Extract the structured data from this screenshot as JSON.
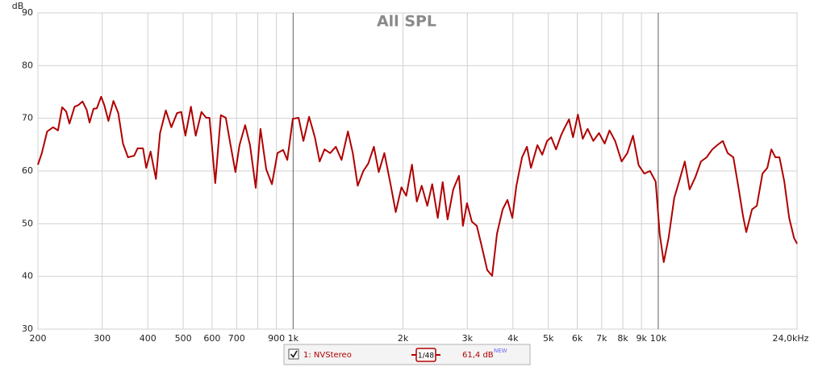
{
  "chart_data": {
    "type": "line",
    "title": "All SPL",
    "ylabel": "dB",
    "xscale": "log",
    "grid": true,
    "xlim": [
      200,
      24000
    ],
    "ylim": [
      30,
      90
    ],
    "yticks": [
      30,
      40,
      50,
      60,
      70,
      80,
      90
    ],
    "xticks": [
      200,
      300,
      400,
      500,
      600,
      700,
      {
        "value": 900,
        "label": "900"
      },
      {
        "value": 1000,
        "label": "1k"
      },
      {
        "value": 2000,
        "label": "2k"
      },
      {
        "value": 3000,
        "label": "3k"
      },
      {
        "value": 4000,
        "label": "4k"
      },
      {
        "value": 5000,
        "label": "5k"
      },
      {
        "value": 6000,
        "label": "6k"
      },
      {
        "value": 7000,
        "label": "7k"
      },
      {
        "value": 8000,
        "label": "8k"
      },
      {
        "value": 9000,
        "label": "9k"
      },
      {
        "value": 10000,
        "label": "10k"
      },
      {
        "value": 24000,
        "label": "24,0kHz"
      }
    ],
    "xminorticks": [
      800
    ],
    "x": [
      200,
      205,
      212,
      220,
      227,
      233,
      239,
      244,
      252,
      258,
      265,
      272,
      277,
      284,
      290,
      298,
      304,
      312,
      322,
      332,
      342,
      353,
      367,
      375,
      388,
      396,
      407,
      421,
      432,
      448,
      464,
      481,
      494,
      507,
      525,
      541,
      561,
      578,
      590,
      612,
      634,
      654,
      674,
      695,
      713,
      739,
      762,
      790,
      814,
      844,
      875,
      906,
      939,
      964,
      998,
      1035,
      1067,
      1106,
      1147,
      1182,
      1219,
      1263,
      1309,
      1357,
      1413,
      1457,
      1503,
      1557,
      1606,
      1664,
      1716,
      1778,
      1852,
      1910,
      1980,
      2041,
      2116,
      2182,
      2250,
      2331,
      2404,
      2490,
      2568,
      2649,
      2745,
      2845,
      2918,
      2994,
      3087,
      3184,
      3283,
      3401,
      3508,
      3617,
      3748,
      3864,
      3985,
      4088,
      4237,
      4369,
      4481,
      4667,
      4812,
      4962,
      5092,
      5250,
      5413,
      5524,
      5696,
      5843,
      6025,
      6212,
      6405,
      6640,
      6882,
      7133,
      7355,
      7620,
      7939,
      8229,
      8528,
      8838,
      9160,
      9493,
      9838,
      10092,
      10353,
      10675,
      11063,
      11407,
      11822,
      12190,
      12633,
      13092,
      13569,
      14062,
      14500,
      15025,
      15493,
      16059,
      16558,
      17075,
      17426,
      18062,
      18621,
      19298,
      19899,
      20410,
      20939,
      21479,
      22146,
      22834,
      23546,
      24000
    ],
    "series": [
      {
        "name": "1: NVStereo",
        "color": "#b00000",
        "values": [
          61.2,
          63.4,
          67.5,
          68.3,
          67.7,
          72.1,
          71.3,
          69.0,
          72.2,
          72.5,
          73.2,
          71.6,
          69.2,
          71.8,
          71.9,
          74.1,
          72.5,
          69.5,
          73.3,
          71.0,
          65.2,
          62.6,
          62.9,
          64.3,
          64.3,
          60.6,
          63.7,
          58.5,
          67.2,
          71.5,
          68.3,
          71.0,
          71.2,
          66.7,
          72.2,
          66.7,
          71.2,
          70.1,
          70.1,
          57.7,
          70.6,
          70.1,
          64.9,
          59.8,
          64.9,
          68.7,
          64.9,
          56.8,
          68.0,
          60.3,
          57.5,
          63.4,
          64.0,
          62.1,
          69.9,
          70.1,
          65.7,
          70.3,
          66.4,
          61.8,
          64.1,
          63.4,
          64.6,
          62.1,
          67.5,
          63.4,
          57.2,
          60.0,
          61.4,
          64.6,
          59.8,
          63.4,
          57.2,
          52.2,
          56.9,
          55.3,
          61.2,
          54.2,
          57.2,
          53.4,
          57.5,
          51.1,
          57.9,
          50.8,
          56.5,
          59.1,
          49.6,
          53.9,
          50.4,
          49.6,
          45.8,
          41.2,
          40.1,
          48.1,
          52.7,
          54.5,
          51.1,
          57.2,
          62.6,
          64.6,
          60.6,
          64.9,
          63.1,
          65.7,
          66.4,
          64.1,
          66.7,
          68.0,
          69.8,
          66.4,
          70.7,
          66.1,
          68.0,
          65.7,
          67.2,
          65.2,
          67.7,
          65.7,
          61.8,
          63.4,
          66.7,
          61.1,
          59.5,
          60.0,
          58.0,
          48.1,
          42.7,
          47.3,
          54.9,
          58.0,
          61.8,
          56.5,
          58.8,
          61.8,
          62.6,
          64.1,
          64.9,
          65.7,
          63.4,
          62.6,
          57.2,
          51.4,
          48.4,
          52.7,
          53.4,
          59.5,
          60.6,
          64.1,
          62.6,
          62.6,
          58.0,
          51.1,
          47.3,
          46.2
        ]
      }
    ],
    "smoothing": "1/48",
    "readout": "61,4 dB",
    "badge": "NEW"
  }
}
